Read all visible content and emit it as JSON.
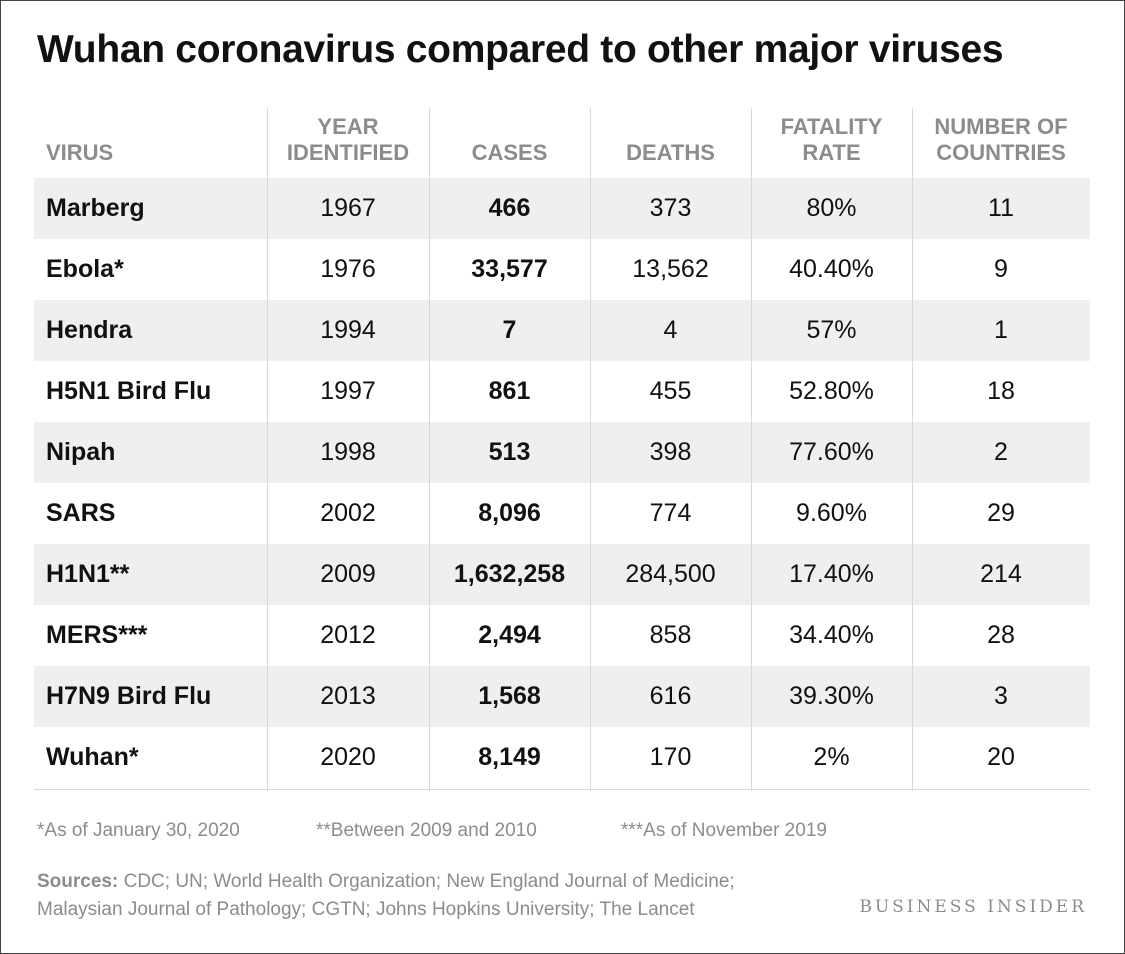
{
  "title": "Wuhan coronavirus compared to other major viruses",
  "chart_data": {
    "type": "table",
    "title": "Wuhan coronavirus compared to other major viruses",
    "columns": [
      "VIRUS",
      "YEAR\nIDENTIFIED",
      "CASES",
      "DEATHS",
      "FATALITY\nRATE",
      "NUMBER OF\nCOUNTRIES"
    ],
    "rows": [
      [
        "Marberg",
        "1967",
        "466",
        "373",
        "80%",
        "11"
      ],
      [
        "Ebola*",
        "1976",
        "33,577",
        "13,562",
        "40.40%",
        "9"
      ],
      [
        "Hendra",
        "1994",
        "7",
        "4",
        "57%",
        "1"
      ],
      [
        "H5N1 Bird Flu",
        "1997",
        "861",
        "455",
        "52.80%",
        "18"
      ],
      [
        "Nipah",
        "1998",
        "513",
        "398",
        "77.60%",
        "2"
      ],
      [
        "SARS",
        "2002",
        "8,096",
        "774",
        "9.60%",
        "29"
      ],
      [
        "H1N1**",
        "2009",
        "1,632,258",
        "284,500",
        "17.40%",
        "214"
      ],
      [
        "MERS***",
        "2012",
        "2,494",
        "858",
        "34.40%",
        "28"
      ],
      [
        "H7N9 Bird Flu",
        "2013",
        "1,568",
        "616",
        "39.30%",
        "3"
      ],
      [
        "Wuhan*",
        "2020",
        "8,149",
        "170",
        "2%",
        "20"
      ]
    ]
  },
  "footnotes": [
    "*As of January 30, 2020",
    "**Between 2009 and 2010",
    "***As of November 2019"
  ],
  "sources_label": "Sources:",
  "sources_line1": " CDC; UN; World Health Organization; New England Journal of Medicine;",
  "sources_line2": "Malaysian Journal of Pathology; CGTN; Johns Hopkins University; The Lancet",
  "brand": "BUSINESS INSIDER",
  "colors": {
    "stripe": "#efefef",
    "header_text": "#8c8c8c",
    "body_text": "#111111"
  }
}
